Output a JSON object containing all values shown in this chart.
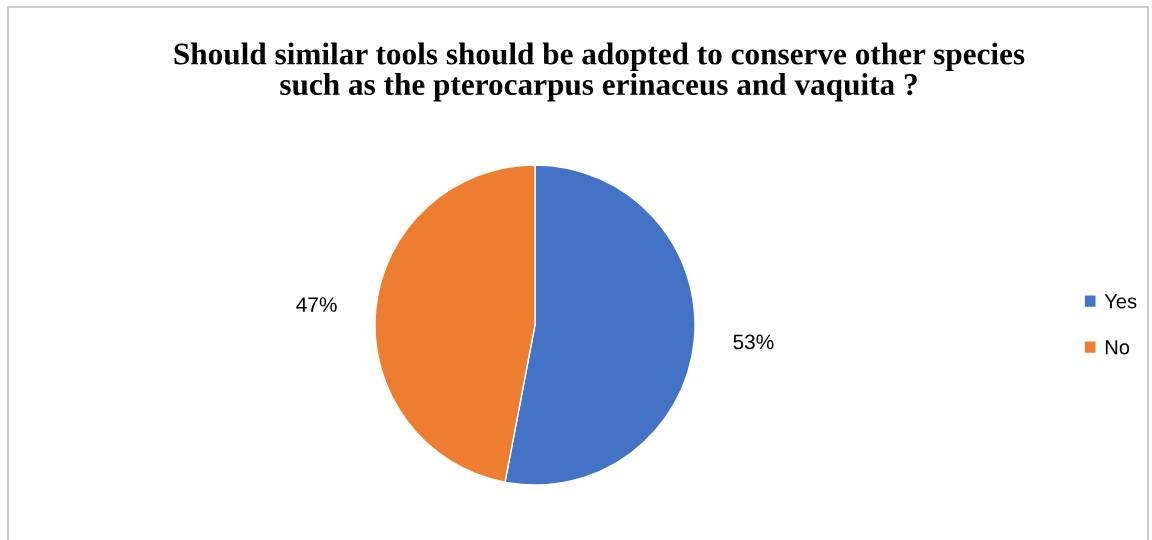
{
  "chart_data": {
    "type": "pie",
    "title": "Should similar tools should be adopted to conserve other species\nsuch as the pterocarpus erinaceus and vaquita ?",
    "categories": [
      "Yes",
      "No"
    ],
    "values": [
      53,
      47
    ],
    "colors": [
      "#4472c4",
      "#ed7d31"
    ],
    "value_labels": [
      "53%",
      "47%"
    ],
    "legend": "right"
  }
}
